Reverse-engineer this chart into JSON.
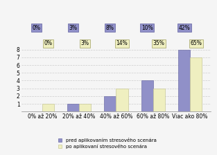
{
  "categories": [
    "0% až 20%",
    "20% až 40%",
    "40% až 60%",
    "60% až 80%",
    "Viac ako 80%"
  ],
  "values_before": [
    0,
    1,
    2,
    4,
    8
  ],
  "values_after": [
    1,
    1,
    3,
    3,
    7
  ],
  "labels_before": [
    "0%",
    "3%",
    "8%",
    "10%",
    "42%"
  ],
  "labels_after": [
    "0%",
    "3%",
    "14%",
    "35%",
    "65%"
  ],
  "color_before": "#9090c8",
  "color_after": "#efefc0",
  "bar_border_before": "#7070a8",
  "bar_border_after": "#c8c898",
  "label_bg_before": "#9090c8",
  "label_bg_after": "#efefc0",
  "label_border_before": "#6060a0",
  "label_border_after": "#a0a060",
  "ylim": [
    0,
    8
  ],
  "yticks": [
    0,
    1,
    2,
    3,
    4,
    5,
    6,
    7,
    8
  ],
  "legend_before": "pred aplikovaním stresového scenára",
  "legend_after": "po aplikovaní stresového scenára",
  "background_color": "#f5f5f5",
  "grid_color": "#cccccc",
  "tick_fontsize": 5.5,
  "label_fontsize": 5.5,
  "bar_width": 0.32
}
